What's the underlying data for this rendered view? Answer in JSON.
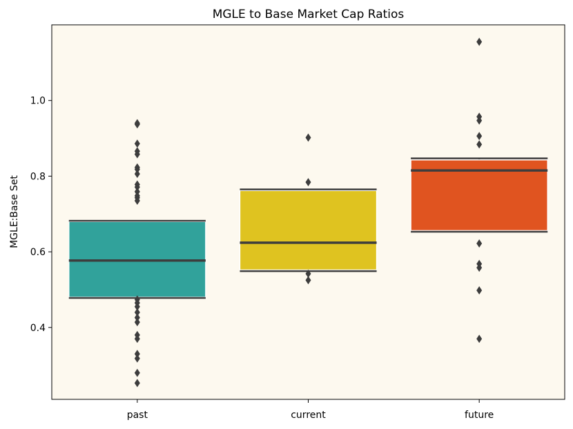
{
  "chart_data": {
    "type": "boxplot",
    "title": "MGLE to Base Market Cap Ratios",
    "xlabel": "",
    "ylabel": "MGLE:Base Set",
    "ylim": [
      0.21,
      1.2
    ],
    "yticks": [
      0.4,
      0.6,
      0.8,
      1.0
    ],
    "ytick_labels": [
      "0.4",
      "0.6",
      "0.8",
      "1.0"
    ],
    "categories": [
      "past",
      "current",
      "future"
    ],
    "plot_background": "#fdf9ef",
    "boxes": [
      {
        "category": "past",
        "color": "#31a29b",
        "q1": 0.48,
        "median": 0.577,
        "q3": 0.68,
        "whisker_low": 0.478,
        "whisker_high": 0.682,
        "outliers": [
          0.94,
          0.937,
          0.886,
          0.866,
          0.858,
          0.823,
          0.818,
          0.806,
          0.778,
          0.771,
          0.759,
          0.748,
          0.743,
          0.735,
          0.474,
          0.465,
          0.455,
          0.44,
          0.426,
          0.414,
          0.38,
          0.37,
          0.33,
          0.318,
          0.28,
          0.253
        ]
      },
      {
        "category": "current",
        "color": "#dfc320",
        "q1": 0.552,
        "median": 0.624,
        "q3": 0.762,
        "whisker_low": 0.549,
        "whisker_high": 0.765,
        "outliers": [
          0.902,
          0.784,
          0.542,
          0.525
        ]
      },
      {
        "category": "future",
        "color": "#e05420",
        "q1": 0.656,
        "median": 0.815,
        "q3": 0.843,
        "whisker_low": 0.653,
        "whisker_high": 0.847,
        "outliers": [
          1.155,
          0.957,
          0.947,
          0.906,
          0.884,
          0.622,
          0.568,
          0.558,
          0.498,
          0.37
        ]
      }
    ]
  }
}
